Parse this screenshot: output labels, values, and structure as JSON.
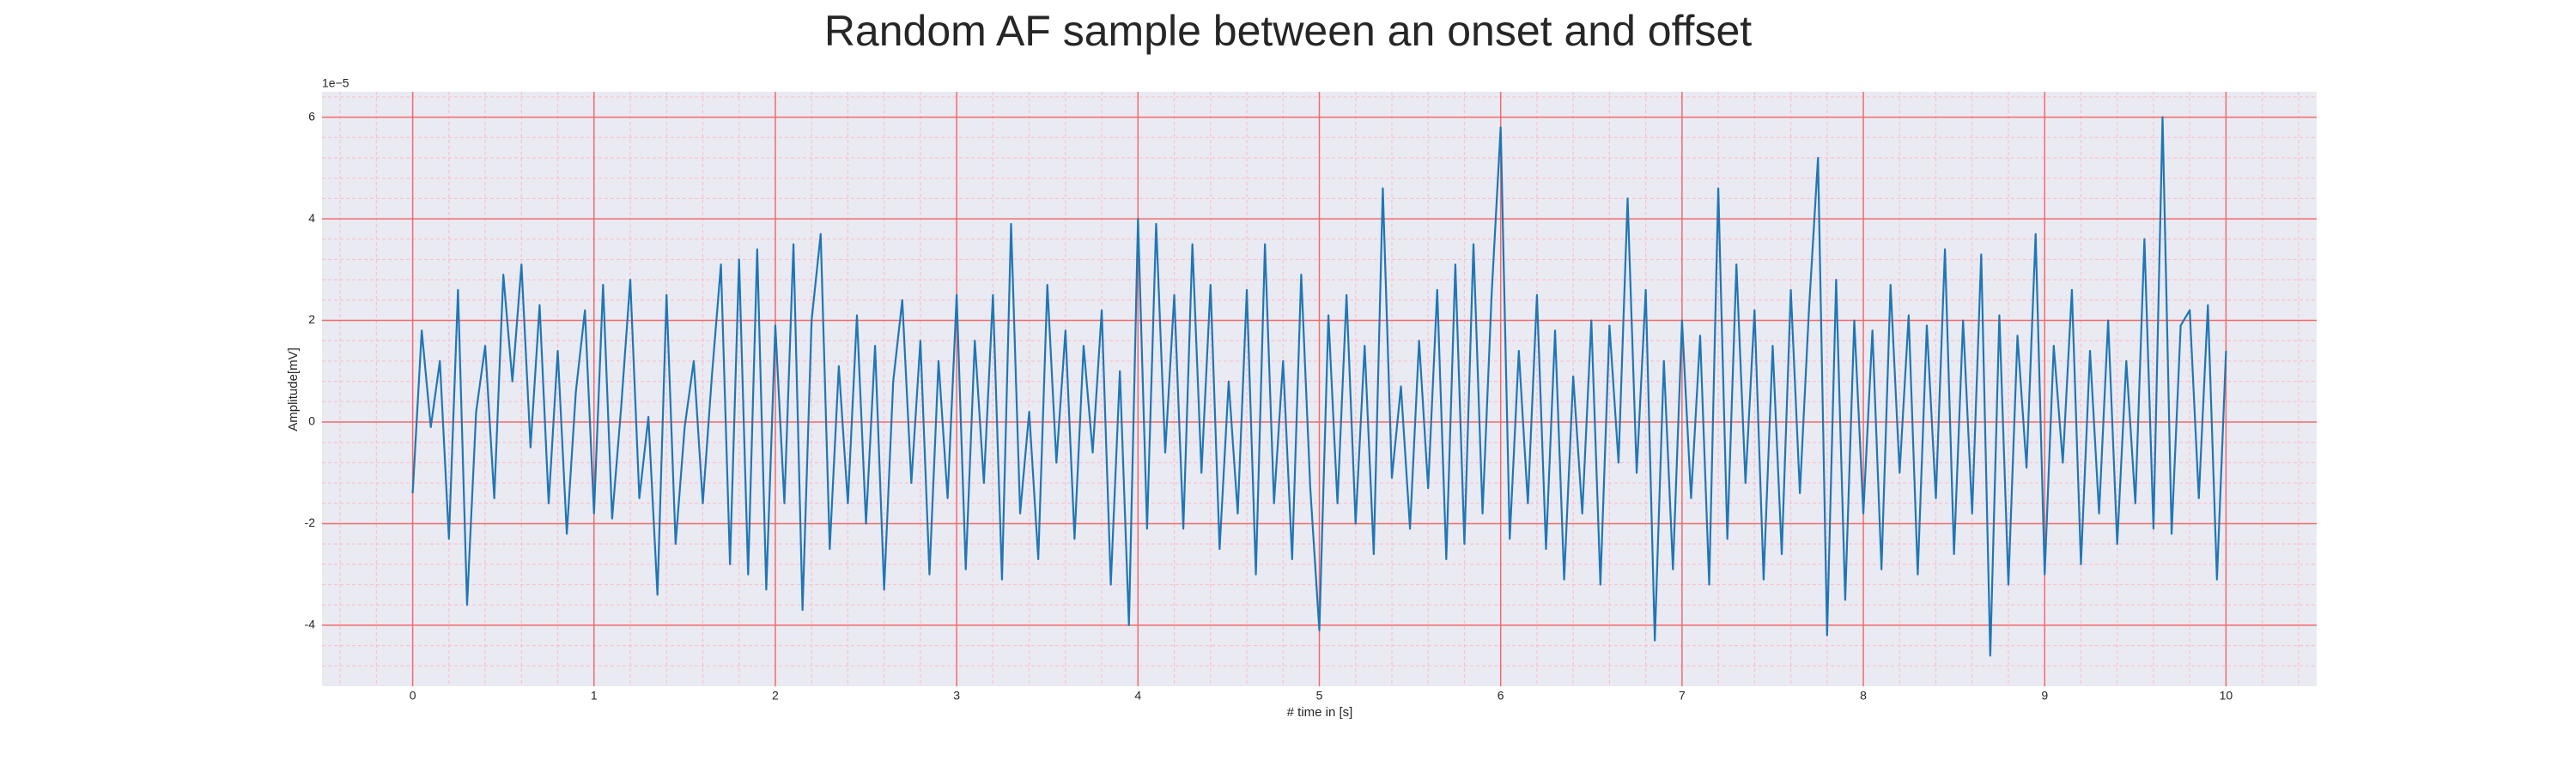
{
  "chart_data": {
    "type": "line",
    "title": "Random AF sample between an onset and offset",
    "x_label": "# time in [s]",
    "y_label": "Amplitude[mV]",
    "y_offset_label": "1e−5",
    "xlim": [
      -0.5,
      10.5
    ],
    "ylim": [
      -5.2,
      6.5
    ],
    "xticks": [
      0,
      1,
      2,
      3,
      4,
      5,
      6,
      7,
      8,
      9,
      10
    ],
    "yticks": [
      -4,
      -2,
      0,
      2,
      4,
      6
    ],
    "x_minor_ticks": [
      -0.4,
      -0.2,
      0.2,
      0.4,
      0.6,
      0.8,
      1.2,
      1.4,
      1.6,
      1.8,
      2.2,
      2.4,
      2.6,
      2.8,
      3.2,
      3.4,
      3.6,
      3.8,
      4.2,
      4.4,
      4.6,
      4.8,
      5.2,
      5.4,
      5.6,
      5.8,
      6.2,
      6.4,
      6.6,
      6.8,
      7.2,
      7.4,
      7.6,
      7.8,
      8.2,
      8.4,
      8.6,
      8.8,
      9.2,
      9.4,
      9.6,
      9.8,
      10.2,
      10.4
    ],
    "y_minor_ticks": [
      -4.8,
      -4.4,
      -3.6,
      -3.2,
      -2.8,
      -2.4,
      -1.6,
      -1.2,
      -0.8,
      -0.4,
      0.4,
      0.8,
      1.2,
      1.6,
      2.4,
      2.8,
      3.2,
      3.6,
      4.4,
      4.8,
      5.2,
      5.6,
      6.4
    ],
    "grid": true,
    "grid_color": "#f26b6b",
    "minor_grid_color": "#f5c3cf",
    "background": "#eaeaf2",
    "series": [
      {
        "color": "#1f77b4",
        "x": [
          0,
          0.05,
          0.1,
          0.15,
          0.2,
          0.25,
          0.3,
          0.35,
          0.4,
          0.45,
          0.5,
          0.55,
          0.6,
          0.65,
          0.7,
          0.75,
          0.8,
          0.85,
          0.9,
          0.95,
          1,
          1.05,
          1.1,
          1.15,
          1.2,
          1.25,
          1.3,
          1.35,
          1.4,
          1.45,
          1.5,
          1.55,
          1.6,
          1.65,
          1.7,
          1.75,
          1.8,
          1.85,
          1.9,
          1.95,
          2,
          2.05,
          2.1,
          2.15,
          2.2,
          2.25,
          2.3,
          2.35,
          2.4,
          2.45,
          2.5,
          2.55,
          2.6,
          2.65,
          2.7,
          2.75,
          2.8,
          2.85,
          2.9,
          2.95,
          3,
          3.05,
          3.1,
          3.15,
          3.2,
          3.25,
          3.3,
          3.35,
          3.4,
          3.45,
          3.5,
          3.55,
          3.6,
          3.65,
          3.7,
          3.75,
          3.8,
          3.85,
          3.9,
          3.95,
          4,
          4.05,
          4.1,
          4.15,
          4.2,
          4.25,
          4.3,
          4.35,
          4.4,
          4.45,
          4.5,
          4.55,
          4.6,
          4.65,
          4.7,
          4.75,
          4.8,
          4.85,
          4.9,
          4.95,
          5,
          5.05,
          5.1,
          5.15,
          5.2,
          5.25,
          5.3,
          5.35,
          5.4,
          5.45,
          5.5,
          5.55,
          5.6,
          5.65,
          5.7,
          5.75,
          5.8,
          5.85,
          5.9,
          5.95,
          6,
          6.05,
          6.1,
          6.15,
          6.2,
          6.25,
          6.3,
          6.35,
          6.4,
          6.45,
          6.5,
          6.55,
          6.6,
          6.65,
          6.7,
          6.75,
          6.8,
          6.85,
          6.9,
          6.95,
          7,
          7.05,
          7.1,
          7.15,
          7.2,
          7.25,
          7.3,
          7.35,
          7.4,
          7.45,
          7.5,
          7.55,
          7.6,
          7.65,
          7.7,
          7.75,
          7.8,
          7.85,
          7.9,
          7.95,
          8,
          8.05,
          8.1,
          8.15,
          8.2,
          8.25,
          8.3,
          8.35,
          8.4,
          8.45,
          8.5,
          8.55,
          8.6,
          8.65,
          8.7,
          8.75,
          8.8,
          8.85,
          8.9,
          8.95,
          9,
          9.05,
          9.1,
          9.15,
          9.2,
          9.25,
          9.3,
          9.35,
          9.4,
          9.45,
          9.5,
          9.55,
          9.6,
          9.65,
          9.7,
          9.75,
          9.8,
          9.85,
          9.9,
          9.95,
          10
        ],
        "values": [
          -1.4,
          1.8,
          -0.1,
          1.2,
          -2.3,
          2.6,
          -3.6,
          0.2,
          1.5,
          -1.5,
          2.9,
          0.8,
          3.1,
          -0.5,
          2.3,
          -1.6,
          1.4,
          -2.2,
          0.6,
          2.2,
          -1.8,
          2.7,
          -1.9,
          0.3,
          2.8,
          -1.5,
          0.1,
          -3.4,
          2.5,
          -2.4,
          -0.1,
          1.2,
          -1.6,
          0.9,
          3.1,
          -2.8,
          3.2,
          -3.0,
          3.4,
          -3.3,
          1.9,
          -1.6,
          3.5,
          -3.7,
          2.0,
          3.7,
          -2.5,
          1.1,
          -1.6,
          2.1,
          -2.0,
          1.5,
          -3.3,
          0.8,
          2.4,
          -1.2,
          1.6,
          -3.0,
          1.2,
          -1.5,
          2.5,
          -2.9,
          1.6,
          -1.2,
          2.5,
          -3.1,
          3.9,
          -1.8,
          0.2,
          -2.7,
          2.7,
          -0.8,
          1.8,
          -2.3,
          1.5,
          -0.6,
          2.2,
          -3.2,
          1.0,
          -4.0,
          4.0,
          -2.1,
          3.9,
          -0.6,
          2.5,
          -2.1,
          3.5,
          -1.0,
          2.7,
          -2.5,
          0.8,
          -1.8,
          2.6,
          -3.0,
          3.5,
          -1.6,
          1.2,
          -2.7,
          2.9,
          -1.3,
          -4.1,
          2.1,
          -1.6,
          2.5,
          -2.0,
          1.5,
          -2.6,
          4.6,
          -1.1,
          0.7,
          -2.1,
          1.6,
          -1.3,
          2.6,
          -2.7,
          3.1,
          -2.4,
          3.5,
          -1.8,
          2.5,
          5.8,
          -2.3,
          1.4,
          -1.6,
          2.5,
          -2.5,
          1.8,
          -3.1,
          0.9,
          -1.8,
          2.0,
          -3.2,
          1.9,
          -0.8,
          4.4,
          -1.0,
          2.6,
          -4.3,
          1.2,
          -2.9,
          2.0,
          -1.5,
          1.7,
          -3.2,
          4.6,
          -2.3,
          3.1,
          -1.2,
          2.2,
          -3.1,
          1.5,
          -2.6,
          2.6,
          -1.4,
          2.2,
          5.2,
          -4.2,
          2.8,
          -3.5,
          2.0,
          -1.8,
          1.8,
          -2.9,
          2.7,
          -1.0,
          2.1,
          -3.0,
          1.9,
          -1.5,
          3.4,
          -2.6,
          2.0,
          -1.8,
          3.3,
          -4.6,
          2.1,
          -3.2,
          1.7,
          -0.9,
          3.7,
          -3.0,
          1.5,
          -0.8,
          2.6,
          -2.8,
          1.4,
          -1.8,
          2.0,
          -2.4,
          1.2,
          -1.6,
          3.6,
          -2.1,
          6.0,
          -2.2,
          1.9,
          2.2,
          -1.5,
          2.3,
          -3.1,
          1.4
        ]
      }
    ]
  }
}
